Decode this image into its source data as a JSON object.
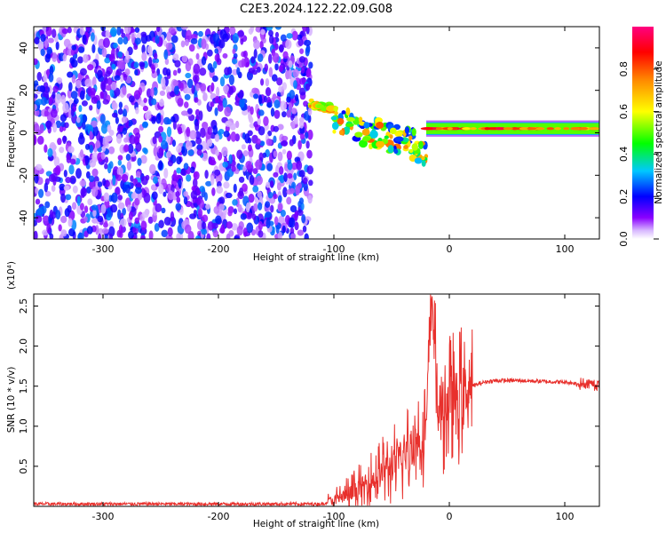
{
  "title": "C2E3.2024.122.22.09.G08",
  "colors": {
    "noise_purple": "#7a1ff0",
    "signal_red": "#e8302c",
    "snr_line": "#e8302c",
    "axis": "#000000"
  },
  "chart_data": [
    {
      "type": "heatmap",
      "xlabel": "Height of straight line (km)",
      "ylabel": "Frequency (Hz)",
      "xlim": [
        -360,
        130
      ],
      "ylim": [
        -50,
        50
      ],
      "xticks": [
        -300,
        -200,
        -100,
        0,
        100
      ],
      "yticks": [
        -40,
        -20,
        0,
        20,
        40
      ],
      "colorbar": {
        "label": "Normalized spectral amplitude",
        "range": [
          0,
          1
        ],
        "ticks": [
          0.0,
          0.2,
          0.4,
          0.6,
          0.8
        ],
        "colors": [
          "#ffffff",
          "#8a00ff",
          "#0000ff",
          "#00c8ff",
          "#00ff00",
          "#ffff00",
          "#ff8800",
          "#ff0000",
          "#ff0080"
        ]
      },
      "regions": [
        {
          "x_range": [
            -360,
            -120
          ],
          "freq_range": [
            -50,
            50
          ],
          "amplitude": [
            0.0,
            0.25
          ]
        },
        {
          "x_range": [
            -120,
            -100
          ],
          "freq_range": [
            9,
            15
          ],
          "amplitude": [
            0.4,
            0.8
          ]
        },
        {
          "x_range": [
            -100,
            -20
          ],
          "freq_range": [
            -25,
            8
          ],
          "amplitude": [
            0.2,
            0.8
          ]
        },
        {
          "x_range": [
            -20,
            130
          ],
          "freq_range": [
            0,
            4
          ],
          "amplitude": [
            0.6,
            0.95
          ]
        }
      ]
    },
    {
      "type": "line",
      "xlabel": "Height of straight line (km)",
      "ylabel": "SNR (10 * v/v)",
      "y_multiplier": "(x10⁴)",
      "xlim": [
        -360,
        130
      ],
      "ylim": [
        0,
        2.65
      ],
      "xticks": [
        -300,
        -200,
        -100,
        0,
        100
      ],
      "yticks": [
        0.5,
        1.0,
        1.5,
        2.0,
        2.5
      ],
      "series": [
        {
          "x": [
            -360,
            -300,
            -200,
            -110,
            -100,
            -80,
            -60,
            -40,
            -30,
            -20,
            -15,
            -10,
            0,
            10,
            20,
            30,
            40,
            60,
            80,
            100,
            120,
            130
          ],
          "y": [
            0.03,
            0.03,
            0.03,
            0.03,
            0.08,
            0.2,
            0.4,
            0.6,
            0.8,
            1.0,
            2.65,
            1.2,
            1.3,
            1.4,
            1.5,
            1.55,
            1.57,
            1.57,
            1.56,
            1.55,
            1.52,
            1.52
          ]
        }
      ]
    }
  ]
}
